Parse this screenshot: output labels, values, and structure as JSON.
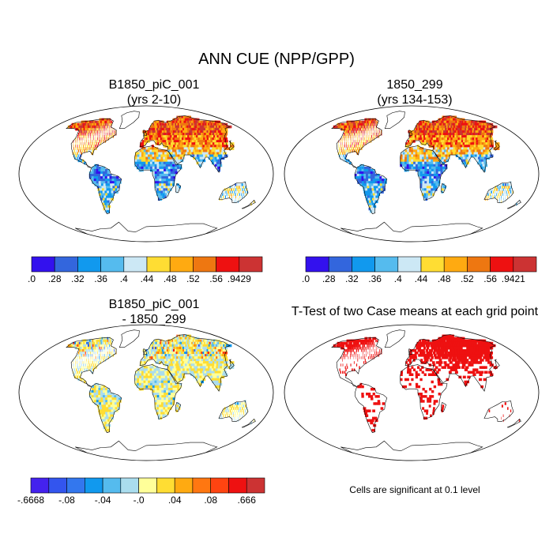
{
  "title": "ANN CUE (NPP/GPP)",
  "panels": [
    {
      "title_line1": "B1850_piC_001",
      "title_line2": "(yrs 2-10)",
      "palette": "seq"
    },
    {
      "title_line1": "1850_299",
      "title_line2": "(yrs 134-153)",
      "palette": "seq"
    },
    {
      "title_line1": "B1850_piC_001",
      "title_line2": "- 1850_299",
      "palette": "diff"
    },
    {
      "title_line1": "T-Test of two Case means at each grid point",
      "title_line2": "",
      "palette": "sig"
    }
  ],
  "colorbars": [
    {
      "labels": [
        ".0",
        ".28",
        ".32",
        ".36",
        ".4",
        ".44",
        ".48",
        ".52",
        ".56",
        ".9429"
      ],
      "colors": [
        "#3311ee",
        "#3366dd",
        "#1199ee",
        "#55bbee",
        "#cce8f5",
        "#ffdd33",
        "#ffaa11",
        "#ee7711",
        "#ee1111",
        "#cc3333"
      ]
    },
    {
      "labels": [
        ".0",
        ".28",
        ".32",
        ".36",
        ".4",
        ".44",
        ".48",
        ".52",
        ".56",
        ".9421"
      ],
      "colors": [
        "#3311ee",
        "#3366dd",
        "#1199ee",
        "#55bbee",
        "#cce8f5",
        "#ffdd33",
        "#ffaa11",
        "#ee7711",
        "#ee1111",
        "#cc3333"
      ]
    },
    {
      "labels": [
        "-.6668",
        "-.08",
        "-.04",
        "-.0",
        ".04",
        ".08",
        ".666"
      ],
      "colors": [
        "#4422ee",
        "#3355ee",
        "#3377ee",
        "#1199ee",
        "#55bbee",
        "#aaddee",
        "#ffff99",
        "#ffdd33",
        "#ffaa11",
        "#ff7711",
        "#ff4411",
        "#ee1111",
        "#cc3333"
      ]
    }
  ],
  "significance_note": "Cells are significant at 0.1 level",
  "significance_color": "#ee1111"
}
